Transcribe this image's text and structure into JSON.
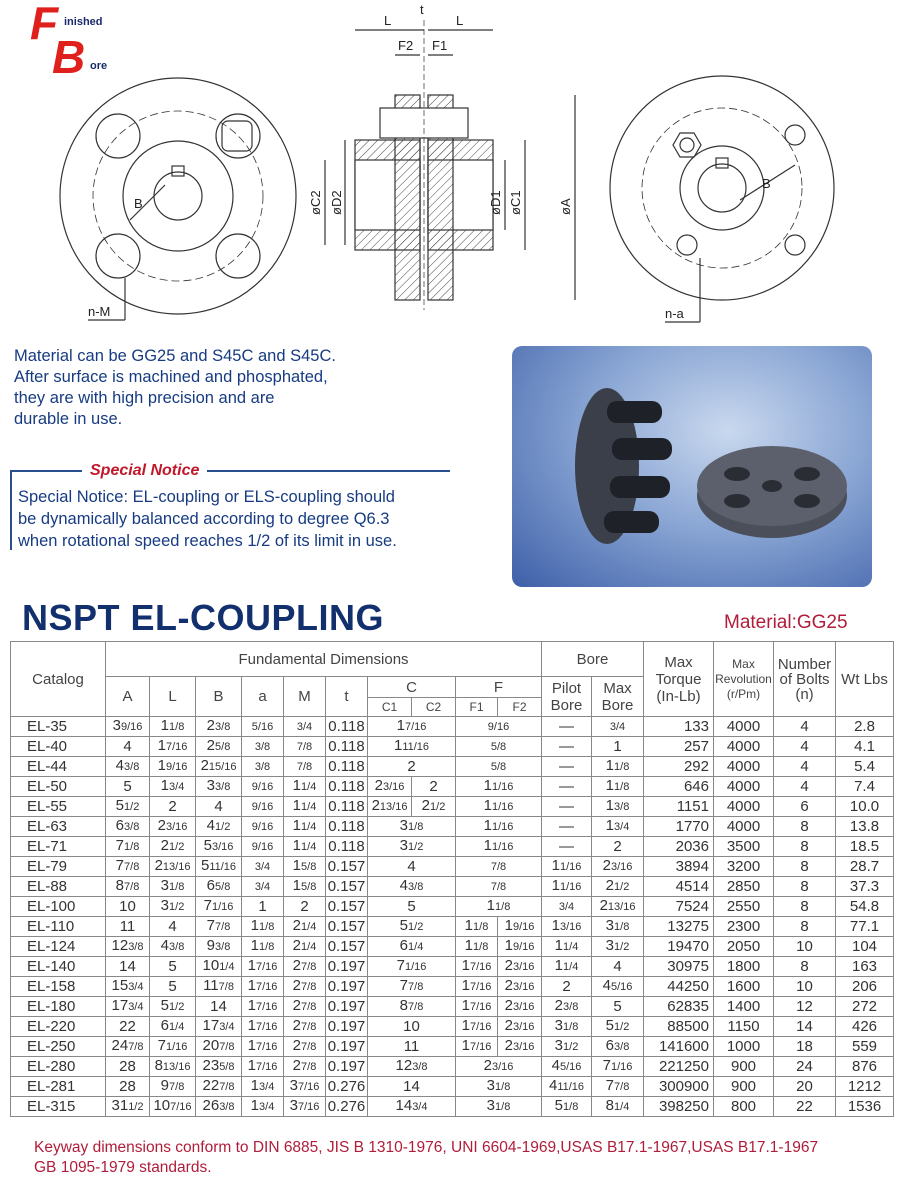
{
  "logo": {
    "letter_f": "F",
    "letter_b": "B",
    "word1": "inished",
    "word2": "ore"
  },
  "diagram_labels": {
    "L_left": "L",
    "t": "t",
    "L_right": "L",
    "F2": "F2",
    "F1": "F1",
    "C2": "øC2",
    "D2": "øD2",
    "D1": "øD1",
    "C1": "øC1",
    "A": "øA",
    "B_left": "B",
    "nM": "n-M",
    "na": "n-a",
    "B_right": "B"
  },
  "intro": [
    "Material can be GG25 and S45C and S45C.",
    "After surface is machined and phosphated,",
    "they are with high precision and are",
    "durable in use."
  ],
  "notice": {
    "title": "Special Notice",
    "lines": [
      "Special Notice: EL-coupling or ELS-coupling should",
      "be dynamically balanced according to degree Q6.3",
      "when rotational speed  reaches 1/2 of its limit in use."
    ]
  },
  "heading": "NSPT EL-COUPLING",
  "material": "Material:GG25",
  "table": {
    "headers": {
      "catalog": "Catalog",
      "fundamental": "Fundamental Dimensions",
      "A": "A",
      "L": "L",
      "B": "B",
      "a": "a",
      "M": "M",
      "t": "t",
      "C": "C",
      "C1": "C1",
      "C2": "C2",
      "F": "F",
      "F1": "F1",
      "F2": "F2",
      "bore": "Bore",
      "pilot": "Pilot Bore",
      "maxbore": "Max Bore",
      "torque": "Max Torque (In-Lb)",
      "rev_max": "Max",
      "rev": "Revolution",
      "rev_unit": "(r/Pm)",
      "bolts": "Number of Bolts (n)",
      "wt": "Wt Lbs"
    },
    "rows": [
      [
        "EL-35",
        "3 9/16",
        "1 1/8",
        "2 3/8",
        "5/16",
        "3/4",
        "0.118",
        "1 7/16",
        "9/16",
        "—",
        "3/4",
        "133",
        "4000",
        "4",
        "2.8"
      ],
      [
        "EL-40",
        "4",
        "1 7/16",
        "2 5/8",
        "3/8",
        "7/8",
        "0.118",
        "1 11/16",
        "5/8",
        "—",
        "1",
        "257",
        "4000",
        "4",
        "4.1"
      ],
      [
        "EL-44",
        "4 3/8",
        "1 9/16",
        "2 15/16",
        "3/8",
        "7/8",
        "0.118",
        "2",
        "5/8",
        "—",
        "1 1/8",
        "292",
        "4000",
        "4",
        "5.4"
      ],
      [
        "EL-50",
        "5",
        "1 3/4",
        "3 3/8",
        "9/16",
        "1 1/4",
        "0.118",
        [
          "2 3/16",
          "2"
        ],
        "11/16",
        "—",
        "1 1/8",
        "646",
        "4000",
        "4",
        "7.4"
      ],
      [
        "EL-55",
        "5 1/2",
        "2",
        "4",
        "9/16",
        "1 1/4",
        "0.118",
        [
          "2 13/16",
          "2 1/2"
        ],
        "11/16",
        "—",
        "1 3/8",
        "1151",
        "4000",
        "6",
        "10.0"
      ],
      [
        "EL-63",
        "6 3/8",
        "2 3/16",
        "4 1/2",
        "9/16",
        "1 1/4",
        "0.118",
        "3 1/8",
        "11/16",
        "—",
        "1 3/4",
        "1770",
        "4000",
        "8",
        "13.8"
      ],
      [
        "EL-71",
        "7 1/8",
        "2 1/2",
        "5 3/16",
        "9/16",
        "1 1/4",
        "0.118",
        "3 1/2",
        "11/16",
        "—",
        "2",
        "2036",
        "3500",
        "8",
        "18.5"
      ],
      [
        "EL-79",
        "7 7/8",
        "2 13/16",
        "5 11/16",
        "3/4",
        "1 5/8",
        "0.157",
        "4",
        "7/8",
        "11/16",
        "2 3/16",
        "3894",
        "3200",
        "8",
        "28.7"
      ],
      [
        "EL-88",
        "8 7/8",
        "3 1/8",
        "6 5/8",
        "3/4",
        "1 5/8",
        "0.157",
        "4 3/8",
        "7/8",
        "11/16",
        "2 1/2",
        "4514",
        "2850",
        "8",
        "37.3"
      ],
      [
        "EL-100",
        "10",
        "3 1/2",
        "7 1/16",
        "1",
        "2",
        "0.157",
        "5",
        "1 1/8",
        "3/4",
        "2 13/16",
        "7524",
        "2550",
        "8",
        "54.8"
      ],
      [
        "EL-110",
        "11",
        "4",
        "7 7/8",
        "1 1/8",
        "2 1/4",
        "0.157",
        "5 1/2",
        [
          "1 1/8",
          "1 9/16"
        ],
        "1 3/16",
        "3 1/8",
        "13275",
        "2300",
        "8",
        "77.1"
      ],
      [
        "EL-124",
        "12 3/8",
        "4 3/8",
        "9 3/8",
        "1 1/8",
        "2 1/4",
        "0.157",
        "6 1/4",
        [
          "1 1/8",
          "1 9/16"
        ],
        "1 1/4",
        "3 1/2",
        "19470",
        "2050",
        "10",
        "104"
      ],
      [
        "EL-140",
        "14",
        "5",
        "10 1/4",
        "1 7/16",
        "2 7/8",
        "0.197",
        "7 1/16",
        [
          "1 7/16",
          "2 3/16"
        ],
        "1 1/4",
        "4",
        "30975",
        "1800",
        "8",
        "163"
      ],
      [
        "EL-158",
        "15 3/4",
        "5",
        "11 7/8",
        "1 7/16",
        "2 7/8",
        "0.197",
        "7 7/8",
        [
          "1 7/16",
          "2 3/16"
        ],
        "2",
        "4 5/16",
        "44250",
        "1600",
        "10",
        "206"
      ],
      [
        "EL-180",
        "17 3/4",
        "5 1/2",
        "14",
        "1 7/16",
        "2 7/8",
        "0.197",
        "8 7/8",
        [
          "1 7/16",
          "2 3/16"
        ],
        "2 3/8",
        "5",
        "62835",
        "1400",
        "12",
        "272"
      ],
      [
        "EL-220",
        "22",
        "6 1/4",
        "17 3/4",
        "1 7/16",
        "2 7/8",
        "0.197",
        "10",
        [
          "1 7/16",
          "2 3/16"
        ],
        "3 1/8",
        "5 1/2",
        "88500",
        "1150",
        "14",
        "426"
      ],
      [
        "EL-250",
        "24 7/8",
        "7 1/16",
        "20 7/8",
        "1 7/16",
        "2 7/8",
        "0.197",
        "11",
        [
          "1 7/16",
          "2 3/16"
        ],
        "3 1/2",
        "6 3/8",
        "141600",
        "1000",
        "18",
        "559"
      ],
      [
        "EL-280",
        "28",
        "8 13/16",
        "23 5/8",
        "1 7/16",
        "2 7/8",
        "0.197",
        "12 3/8",
        "2 3/16",
        "4 5/16",
        "7 1/16",
        "221250",
        "900",
        "24",
        "876"
      ],
      [
        "EL-281",
        "28",
        "9 7/8",
        "22 7/8",
        "1 3/4",
        "3 7/16",
        "0.276",
        "14",
        "3 1/8",
        "4 11/16",
        "7 7/8",
        "300900",
        "900",
        "20",
        "1212"
      ],
      [
        "EL-315",
        "31 1/2",
        "10 7/16",
        "26 3/8",
        "1 3/4",
        "3 7/16",
        "0.276",
        "14 3/4",
        "3 1/8",
        "5 1/8",
        "8 1/4",
        "398250",
        "800",
        "22",
        "1536"
      ]
    ]
  },
  "footer": [
    "Keyway dimensions conform to DIN 6885, JIS B 1310-1976, UNI 6604-1969,USAS B17.1-1967,USAS B17.1-1967",
    "GB 1095-1979 standards."
  ],
  "colors": {
    "blue_text": "#173b82",
    "heading": "#13306e",
    "red": "#b01d3a",
    "logo_red": "#e0201c"
  }
}
